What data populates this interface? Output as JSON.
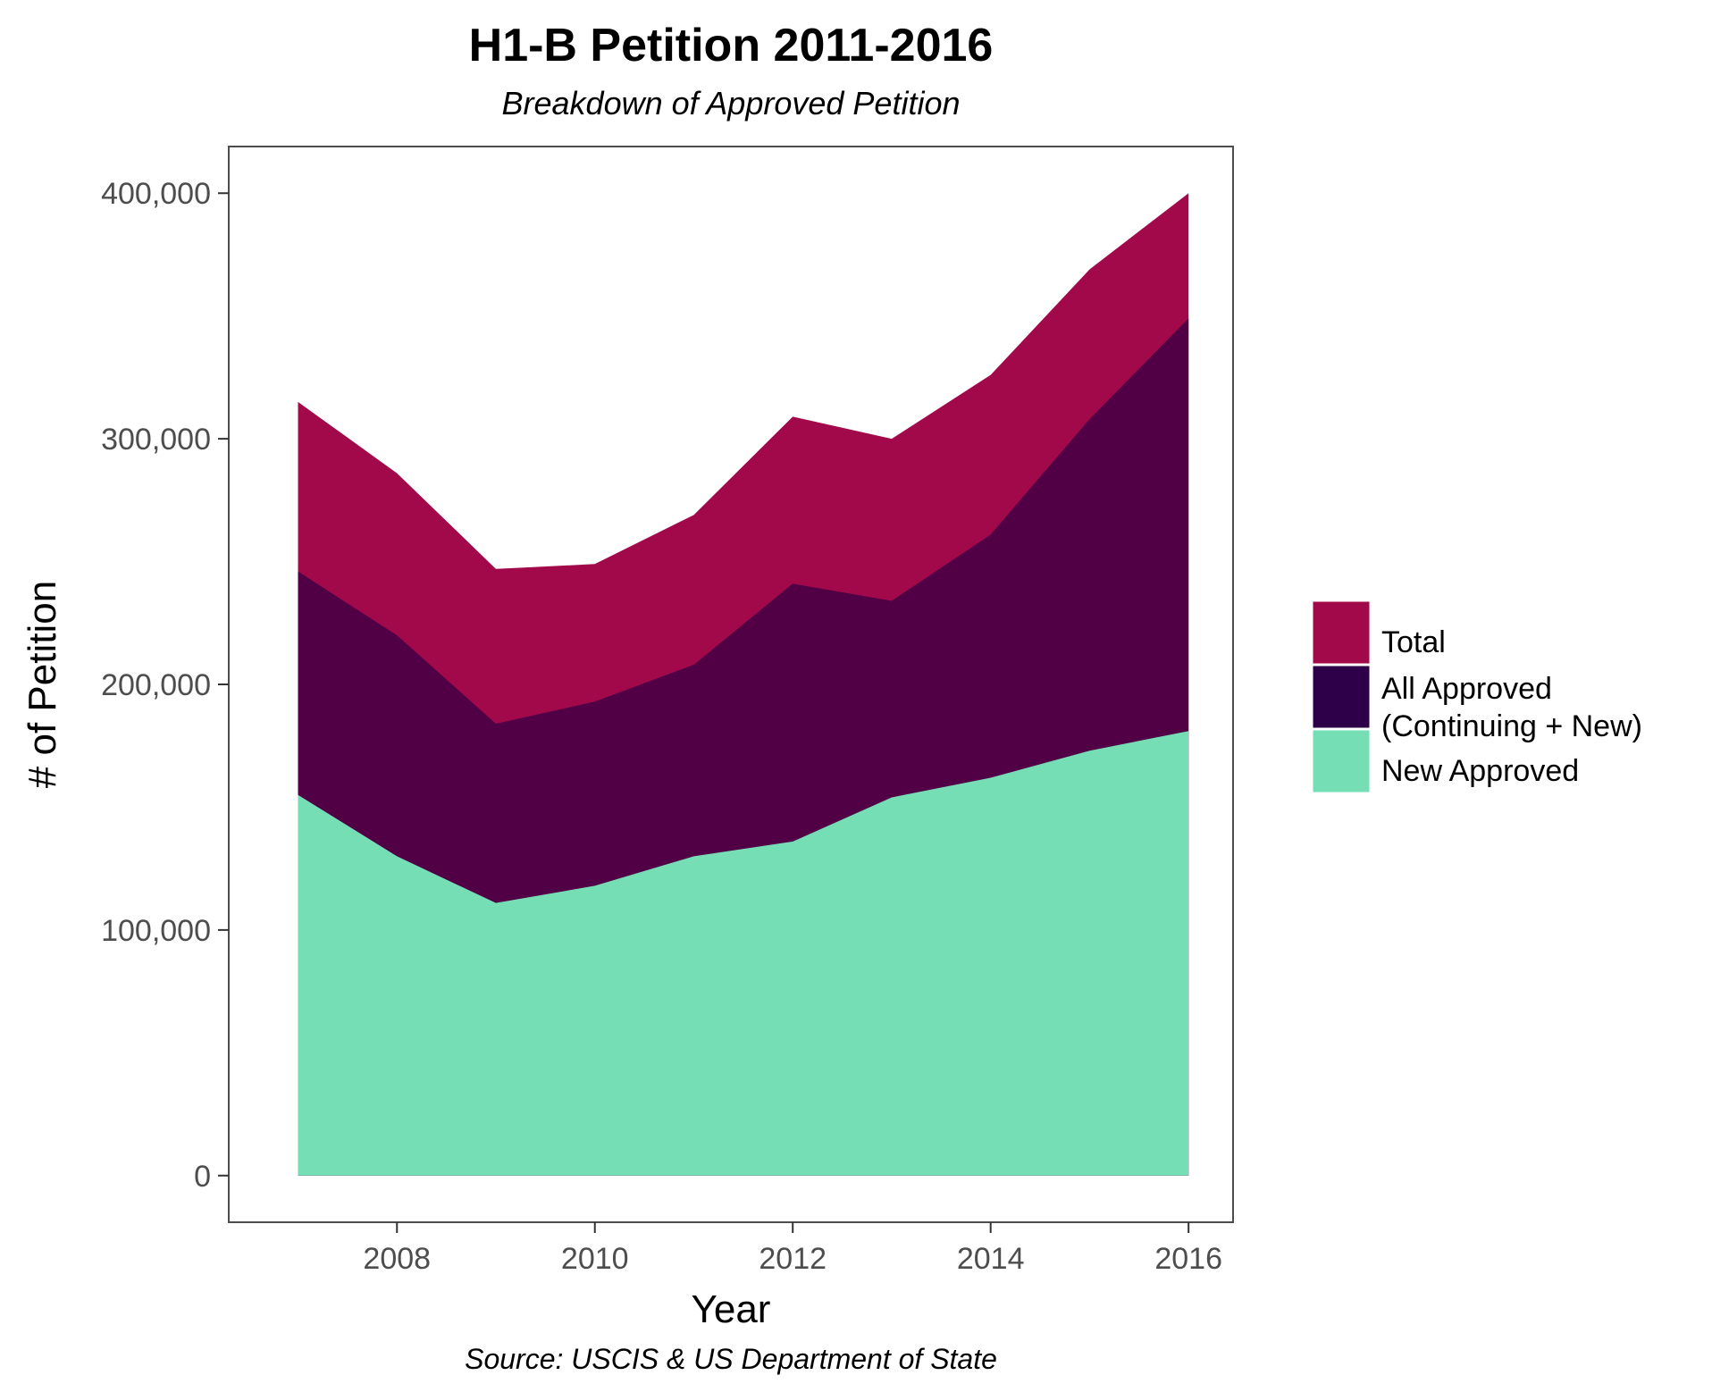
{
  "chart_data": {
    "type": "area",
    "title": "H1-B Petition 2011-2016",
    "subtitle": "Breakdown of Approved Petition",
    "caption": "Source: USCIS & US Department of State",
    "xlabel": "Year",
    "ylabel": "# of Petition",
    "x": [
      2007,
      2008,
      2009,
      2010,
      2011,
      2012,
      2013,
      2014,
      2015,
      2016
    ],
    "xlim": [
      2006.3,
      2016.45
    ],
    "ylim": [
      -19000,
      419000
    ],
    "x_ticks": [
      2008,
      2010,
      2012,
      2014,
      2016
    ],
    "x_tick_labels": [
      "2008",
      "2010",
      "2012",
      "2014",
      "2016"
    ],
    "y_ticks": [
      0,
      100000,
      200000,
      300000,
      400000
    ],
    "y_tick_labels": [
      "0",
      "100,000",
      "200,000",
      "300,000",
      "400,000"
    ],
    "grid": false,
    "legend_position": "right",
    "series": [
      {
        "name": "Total",
        "color": "#a1094b",
        "values": [
          315000,
          286000,
          247000,
          249000,
          269000,
          309000,
          300000,
          326000,
          369000,
          400000
        ]
      },
      {
        "name": "All Approved\n(Continuing + New)",
        "legend_lines": [
          "All Approved",
          "(Continuing + New)"
        ],
        "color": "#510046",
        "legend_color": "#2e004a",
        "values": [
          246000,
          220000,
          184000,
          193000,
          208000,
          241000,
          234000,
          261000,
          308000,
          349000
        ]
      },
      {
        "name": "New Approved",
        "color": "#76deb5",
        "values": [
          155000,
          130000,
          111000,
          118000,
          130000,
          136000,
          154000,
          162000,
          173000,
          181000
        ]
      }
    ]
  }
}
